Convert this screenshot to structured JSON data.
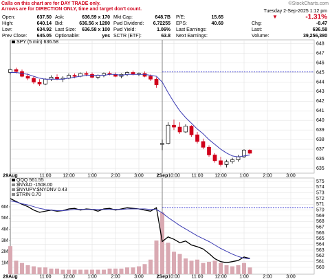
{
  "header": {
    "notes": [
      "Calls on this chart are for DAY TRADE only.",
      "Arrows are for DIRECTION ONLY, time and target don't count."
    ],
    "copyright": "©StockCharts.com",
    "quote": [
      [
        [
          "Open:",
          "637.50"
        ],
        [
          "Ask:",
          "636.59 x 170"
        ],
        [
          "Mkt Cap:",
          "648.7B"
        ],
        [
          "P/E:",
          "15.65"
        ]
      ],
      [
        [
          "High:",
          "640.14"
        ],
        [
          "Bid:",
          "636.56 x 1280"
        ],
        [
          "Fwd Dividend:",
          "6.72255"
        ],
        [
          "EPS:",
          "40.69"
        ]
      ],
      [
        [
          "Low:",
          "634.92"
        ],
        [
          "Last Size:",
          "636.58 x 100"
        ],
        [
          "Fwd Yield:",
          "1.06%"
        ],
        [
          "Last Earnings:"
        ]
      ],
      [
        [
          "Prev Close:",
          "645.05"
        ],
        [
          "Optionable:",
          "yes"
        ],
        [
          "SCTR (ETF):",
          "63.8"
        ],
        [
          "Next Earnings:"
        ]
      ]
    ],
    "date": "Tuesday 2-Sep-2025 1:12 pm",
    "change_pct": "-1.31%",
    "summary": [
      [
        "Chg:",
        "-8.47"
      ],
      [
        "Last:",
        "636.58"
      ],
      [
        "Volume:",
        "39,256,380"
      ]
    ]
  },
  "chart_data": [
    {
      "type": "candlestick",
      "legend": [
        "SPY (5 min) 636.58"
      ],
      "x": [
        0,
        3,
        6,
        9,
        12,
        15,
        18,
        21,
        24,
        27,
        30,
        33,
        36,
        39,
        42,
        45,
        48,
        51,
        54,
        57,
        60,
        63,
        66,
        69,
        72,
        75,
        78,
        81,
        84,
        87,
        90,
        93,
        96,
        99,
        102,
        105,
        108,
        111,
        114,
        117,
        120,
        123
      ],
      "open": [
        645.0,
        645.3,
        645.1,
        644.6,
        644.4,
        644.0,
        643.8,
        644.3,
        644.5,
        644.3,
        644.4,
        644.7,
        644.6,
        644.9,
        644.8,
        644.5,
        644.7,
        644.9,
        644.8,
        644.6,
        644.8,
        645.0,
        644.8,
        644.9,
        644.6,
        644.3,
        637.5,
        637.6,
        639.5,
        639.3,
        638.8,
        639.4,
        638.5,
        637.8,
        637.2,
        636.4,
        635.8,
        635.4,
        635.7,
        635.9,
        636.2,
        636.9
      ],
      "high": [
        645.4,
        645.5,
        645.3,
        644.9,
        644.6,
        644.3,
        644.4,
        644.7,
        644.8,
        644.6,
        644.9,
        644.9,
        645.0,
        645.1,
        645.0,
        644.8,
        645.0,
        645.1,
        645.0,
        644.9,
        645.1,
        645.2,
        645.0,
        645.1,
        644.8,
        644.5,
        638.0,
        639.8,
        640.1,
        639.8,
        639.6,
        639.5,
        638.8,
        638.1,
        637.4,
        636.6,
        636.2,
        635.9,
        636.1,
        636.4,
        637.0,
        637.0
      ],
      "low": [
        644.8,
        644.9,
        644.5,
        644.2,
        643.8,
        643.6,
        643.7,
        644.1,
        644.2,
        644.0,
        644.3,
        644.4,
        644.5,
        644.6,
        644.4,
        644.3,
        644.5,
        644.7,
        644.5,
        644.4,
        644.6,
        644.7,
        644.6,
        644.5,
        644.1,
        643.4,
        636.9,
        637.5,
        639.0,
        638.6,
        638.7,
        638.3,
        637.6,
        637.0,
        636.2,
        635.6,
        635.2,
        635.1,
        635.5,
        635.7,
        636.1,
        636.5
      ],
      "close": [
        645.3,
        645.1,
        644.6,
        644.4,
        644.0,
        643.8,
        644.3,
        644.5,
        644.3,
        644.4,
        644.7,
        644.6,
        644.9,
        644.8,
        644.5,
        644.7,
        644.9,
        644.8,
        644.6,
        644.8,
        645.0,
        644.8,
        644.9,
        644.6,
        644.3,
        643.7,
        637.6,
        639.5,
        639.3,
        638.8,
        639.4,
        638.5,
        637.8,
        637.2,
        636.4,
        635.8,
        635.4,
        635.7,
        635.9,
        636.2,
        636.9,
        636.58
      ],
      "up_color": "#000000",
      "down_color": "#d0021b",
      "overlays": [
        {
          "color": "#3b3bb3",
          "values": [
            645.0,
            645.0,
            644.9,
            644.8,
            644.6,
            644.4,
            644.3,
            644.3,
            644.3,
            644.3,
            644.4,
            644.5,
            644.6,
            644.7,
            644.7,
            644.7,
            644.7,
            644.8,
            644.8,
            644.7,
            644.8,
            644.8,
            644.8,
            644.8,
            644.7,
            644.6,
            644.0,
            642.9,
            641.9,
            641.0,
            640.3,
            639.7,
            639.1,
            638.6,
            638.0,
            637.5,
            637.0,
            636.6,
            636.3,
            636.2,
            636.3,
            636.4
          ]
        }
      ],
      "reference_line": {
        "value": 645.05,
        "color": "#1010c8"
      },
      "xlim": [
        0,
        156
      ],
      "xticks": [
        {
          "value": 0,
          "label": "29Aug"
        },
        {
          "value": 18,
          "label": "11:00"
        },
        {
          "value": 30,
          "label": "12:00"
        },
        {
          "value": 42,
          "label": "1:00"
        },
        {
          "value": 54,
          "label": "2:00"
        },
        {
          "value": 66,
          "label": "3:00"
        },
        {
          "value": 78,
          "label": "2Sep"
        },
        {
          "value": 84,
          "label": "10:00"
        },
        {
          "value": 96,
          "label": "11:00"
        },
        {
          "value": 108,
          "label": "12:00"
        },
        {
          "value": 120,
          "label": "1:00"
        },
        {
          "value": 132,
          "label": "2:00"
        },
        {
          "value": 144,
          "label": "3:00"
        }
      ],
      "ylim": [
        634.5,
        648.4
      ],
      "yticks": [
        635,
        636,
        637,
        638,
        639,
        640,
        641,
        642,
        643,
        644,
        645,
        646,
        647,
        648
      ],
      "grid": true
    },
    {
      "type": "line",
      "legend": [
        "QQQ 561.55",
        "$NYAD -1508.00",
        "$NYUPV:$NYDNV 0.43",
        "$TRIN 0.70"
      ],
      "x": [
        0,
        3,
        6,
        9,
        12,
        15,
        18,
        21,
        24,
        27,
        30,
        33,
        36,
        39,
        42,
        45,
        48,
        51,
        54,
        57,
        60,
        63,
        66,
        69,
        72,
        75,
        78,
        81,
        84,
        87,
        90,
        93,
        96,
        99,
        102,
        105,
        108,
        111,
        114,
        117,
        120,
        123
      ],
      "series": [
        {
          "color": "#000000",
          "values": [
            572.0,
            571.5,
            571.0,
            570.6,
            570.0,
            569.6,
            569.8,
            570.0,
            569.8,
            569.9,
            570.2,
            570.3,
            570.0,
            570.2,
            570.1,
            569.8,
            570.2,
            570.3,
            570.0,
            570.2,
            570.4,
            570.3,
            570.2,
            570.0,
            569.8,
            570.4,
            564.5,
            565.3,
            564.9,
            564.3,
            564.6,
            563.9,
            563.6,
            563.2,
            562.4,
            561.5,
            561.0,
            560.8,
            561.0,
            561.2,
            561.8,
            561.55
          ]
        },
        {
          "color": "#3b3bb3",
          "values": [
            571.6,
            571.4,
            571.1,
            570.9,
            570.6,
            570.3,
            570.1,
            570.0,
            569.9,
            569.9,
            570.0,
            570.1,
            570.1,
            570.1,
            570.1,
            570.1,
            570.1,
            570.1,
            570.1,
            570.1,
            570.2,
            570.2,
            570.2,
            570.2,
            570.1,
            570.1,
            569.5,
            568.7,
            568.0,
            567.3,
            566.7,
            566.1,
            565.5,
            565.0,
            564.5,
            563.9,
            563.3,
            562.8,
            562.3,
            561.9,
            561.6,
            561.5
          ]
        }
      ],
      "volume": {
        "axis": "y2",
        "color": "#d9a9b2",
        "values": [
          2500000,
          1200000,
          1000000,
          800000,
          700000,
          600000,
          600000,
          500000,
          500000,
          400000,
          400000,
          400000,
          400000,
          400000,
          400000,
          400000,
          400000,
          500000,
          500000,
          500000,
          600000,
          600000,
          700000,
          900000,
          1300000,
          3000000,
          5500000,
          2800000,
          2000000,
          1800000,
          1400000,
          1200000,
          1300000,
          1000000,
          1100000,
          1200000,
          1000000,
          800000,
          700000,
          800000,
          1000000,
          600000
        ]
      },
      "reference_line": {
        "value": 570.4,
        "color": "#1010c8"
      },
      "xlim": [
        0,
        156
      ],
      "xticks": [
        {
          "value": 0,
          "label": "29Aug"
        },
        {
          "value": 18,
          "label": "11:00"
        },
        {
          "value": 30,
          "label": "12:00"
        },
        {
          "value": 42,
          "label": "1:00"
        },
        {
          "value": 54,
          "label": "2:00"
        },
        {
          "value": 66,
          "label": "3:00"
        },
        {
          "value": 78,
          "label": "2Sep"
        },
        {
          "value": 84,
          "label": "10:00"
        },
        {
          "value": 96,
          "label": "11:00"
        },
        {
          "value": 108,
          "label": "12:00"
        },
        {
          "value": 120,
          "label": "1:00"
        },
        {
          "value": 132,
          "label": "2:00"
        },
        {
          "value": 144,
          "label": "3:00"
        }
      ],
      "ylim": [
        558.8,
        575.6
      ],
      "yticks": [
        560,
        561,
        562,
        563,
        564,
        565,
        566,
        567,
        568,
        569,
        570,
        571,
        572,
        573,
        574,
        575
      ],
      "y2lim": [
        0,
        8570000
      ],
      "y2ticks": [
        {
          "value": 1000000,
          "label": "1M"
        },
        {
          "value": 2000000,
          "label": "2M"
        },
        {
          "value": 3000000,
          "label": "3M"
        },
        {
          "value": 4000000,
          "label": "4M"
        },
        {
          "value": 5000000,
          "label": "5M"
        },
        {
          "value": 6000000,
          "label": "6M"
        }
      ],
      "grid": true
    }
  ]
}
